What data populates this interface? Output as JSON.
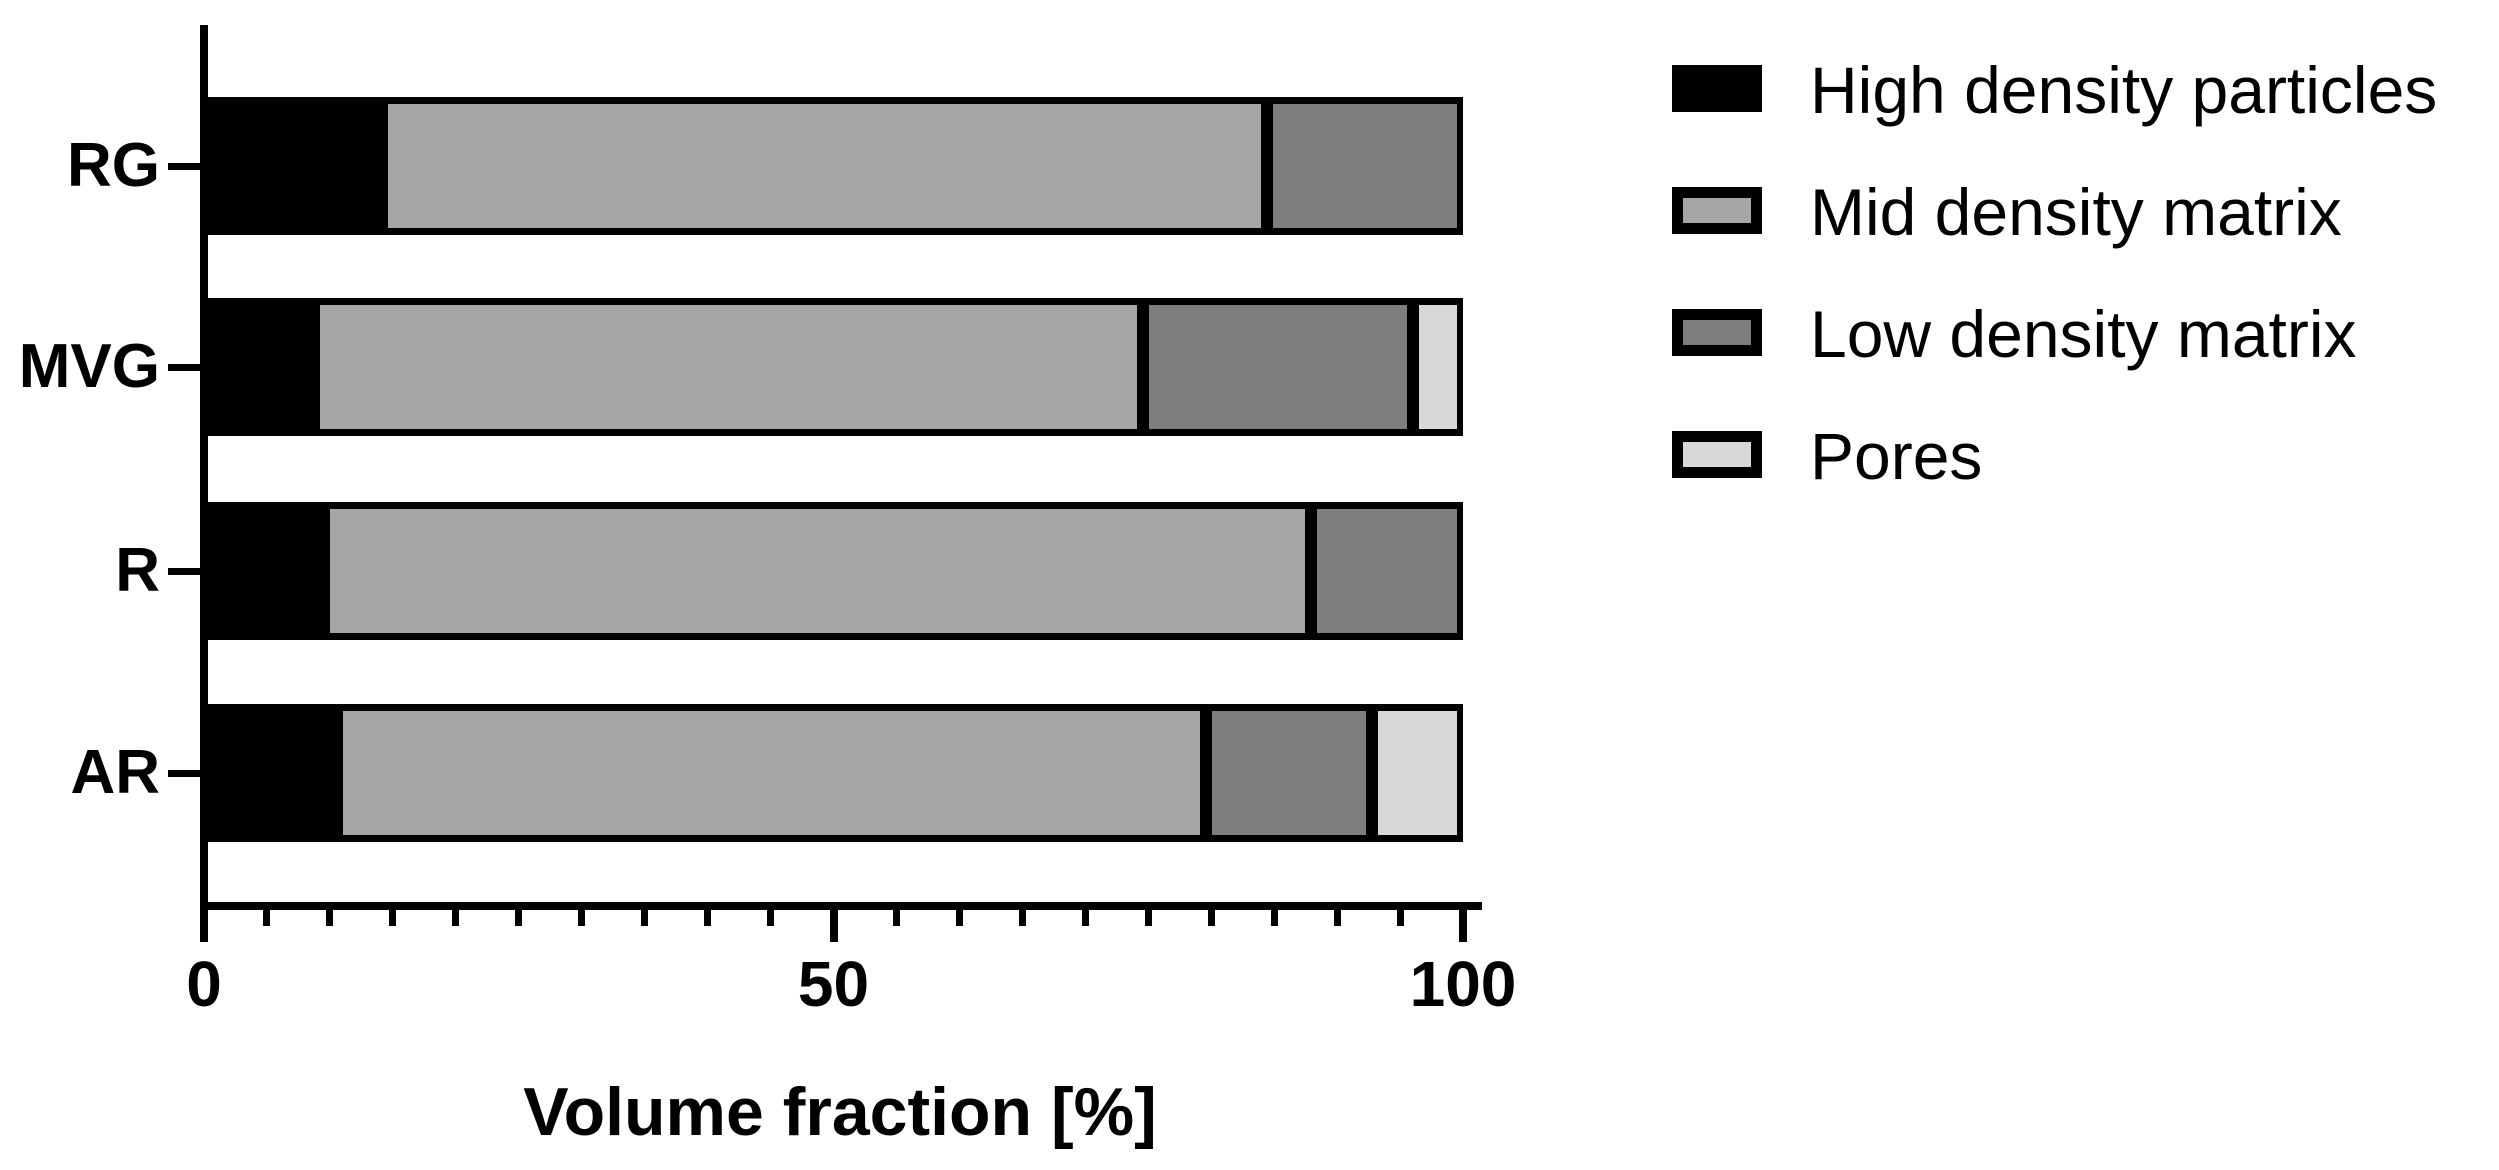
{
  "chart_data": {
    "type": "bar",
    "orientation": "horizontal",
    "stacked": true,
    "title": "",
    "xlabel": "Volume fraction [%]",
    "ylabel": "",
    "xlim": [
      0,
      100
    ],
    "xticks": [
      0,
      50,
      100
    ],
    "xtick_labels": [
      "0",
      "50",
      "100"
    ],
    "minor_tick_step": 5,
    "grid": false,
    "legend_position": "right",
    "categories": [
      "RG",
      "MVG",
      "R",
      "AR"
    ],
    "series": [
      {
        "name": "High density particles",
        "color": "#000000",
        "values": [
          14.1,
          8.7,
          9.5,
          10.6
        ]
      },
      {
        "name": "Mid density matrix",
        "color": "#a6a6a8",
        "values": [
          70.3,
          65.9,
          78.4,
          69.0
        ]
      },
      {
        "name": "Low density matrix",
        "color": "#7e7e7e",
        "values": [
          15.6,
          21.4,
          12.1,
          13.2
        ]
      },
      {
        "name": "Pores",
        "color": "#d8d8d8",
        "values": [
          0.0,
          4.0,
          0.0,
          7.2
        ]
      }
    ],
    "bar_outline_color": "#000000",
    "background_color": "#ffffff",
    "text_color": "#000000"
  }
}
